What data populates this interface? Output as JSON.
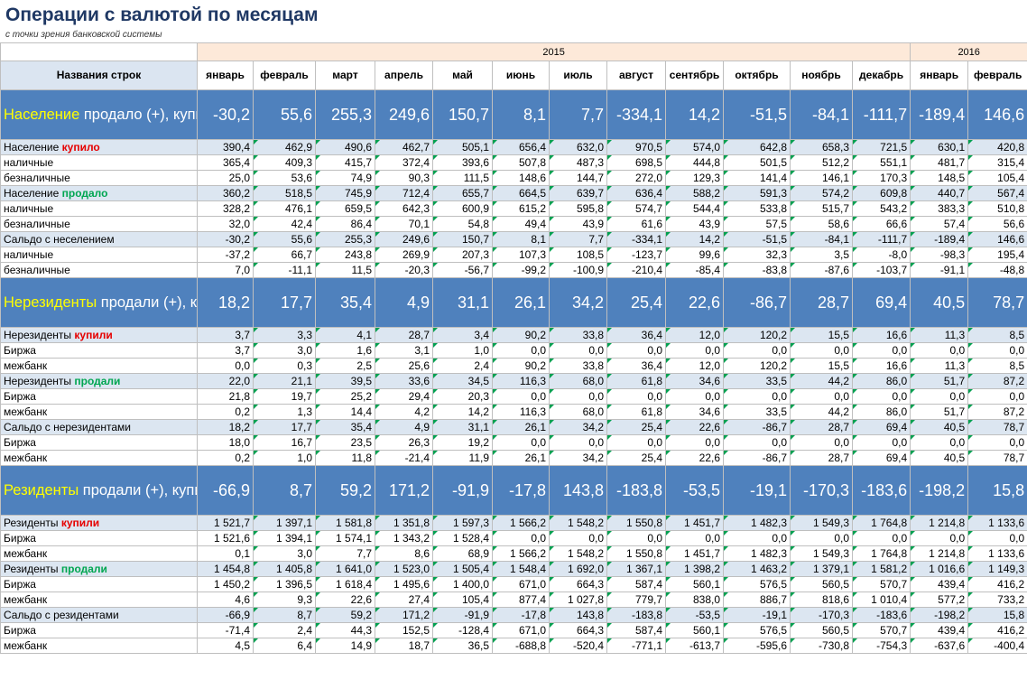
{
  "title": "Операции с валютой по месяцам",
  "subtitle": "с точки зрения банковской системы",
  "header": {
    "row_label": "Названия строк",
    "years": [
      {
        "label": "2015",
        "span": 12
      },
      {
        "label": "2016",
        "span": 2
      }
    ],
    "months": [
      "январь",
      "февраль",
      "март",
      "апрель",
      "май",
      "июнь",
      "июль",
      "август",
      "сентябрь",
      "октябрь",
      "ноябрь",
      "декабрь",
      "январь",
      "февраль"
    ]
  },
  "sections": [
    {
      "label_hl": "Население",
      "label_rest": " продало (+), купило (-)",
      "values": [
        "-30,2",
        "55,6",
        "255,3",
        "249,6",
        "150,7",
        "8,1",
        "7,7",
        "-334,1",
        "14,2",
        "-51,5",
        "-84,1",
        "-111,7",
        "-189,4",
        "146,6"
      ],
      "rows": [
        {
          "type": "sh",
          "label": "Население ",
          "tag": "купило",
          "tag_color": "red",
          "values": [
            "390,4",
            "462,9",
            "490,6",
            "462,7",
            "505,1",
            "656,4",
            "632,0",
            "970,5",
            "574,0",
            "642,8",
            "658,3",
            "721,5",
            "630,1",
            "420,8"
          ]
        },
        {
          "type": "det",
          "label": "наличные",
          "values": [
            "365,4",
            "409,3",
            "415,7",
            "372,4",
            "393,6",
            "507,8",
            "487,3",
            "698,5",
            "444,8",
            "501,5",
            "512,2",
            "551,1",
            "481,7",
            "315,4"
          ]
        },
        {
          "type": "det",
          "label": "безналичные",
          "values": [
            "25,0",
            "53,6",
            "74,9",
            "90,3",
            "111,5",
            "148,6",
            "144,7",
            "272,0",
            "129,3",
            "141,4",
            "146,1",
            "170,3",
            "148,5",
            "105,4"
          ]
        },
        {
          "type": "sh",
          "label": "Население ",
          "tag": "продало",
          "tag_color": "grn",
          "values": [
            "360,2",
            "518,5",
            "745,9",
            "712,4",
            "655,7",
            "664,5",
            "639,7",
            "636,4",
            "588,2",
            "591,3",
            "574,2",
            "609,8",
            "440,7",
            "567,4"
          ]
        },
        {
          "type": "det",
          "label": "наличные",
          "values": [
            "328,2",
            "476,1",
            "659,5",
            "642,3",
            "600,9",
            "615,2",
            "595,8",
            "574,7",
            "544,4",
            "533,8",
            "515,7",
            "543,2",
            "383,3",
            "510,8"
          ]
        },
        {
          "type": "det",
          "label": "безналичные",
          "values": [
            "32,0",
            "42,4",
            "86,4",
            "70,1",
            "54,8",
            "49,4",
            "43,9",
            "61,6",
            "43,9",
            "57,5",
            "58,6",
            "66,6",
            "57,4",
            "56,6"
          ]
        },
        {
          "type": "sh",
          "label": "Сальдо с неселением",
          "tag": "",
          "tag_color": "",
          "values": [
            "-30,2",
            "55,6",
            "255,3",
            "249,6",
            "150,7",
            "8,1",
            "7,7",
            "-334,1",
            "14,2",
            "-51,5",
            "-84,1",
            "-111,7",
            "-189,4",
            "146,6"
          ]
        },
        {
          "type": "det",
          "label": "наличные",
          "values": [
            "-37,2",
            "66,7",
            "243,8",
            "269,9",
            "207,3",
            "107,3",
            "108,5",
            "-123,7",
            "99,6",
            "32,3",
            "3,5",
            "-8,0",
            "-98,3",
            "195,4"
          ]
        },
        {
          "type": "det",
          "label": "безналичные",
          "values": [
            "7,0",
            "-11,1",
            "11,5",
            "-20,3",
            "-56,7",
            "-99,2",
            "-100,9",
            "-210,4",
            "-85,4",
            "-83,8",
            "-87,6",
            "-103,7",
            "-91,1",
            "-48,8"
          ]
        }
      ]
    },
    {
      "label_hl": "Нерезиденты",
      "label_rest": " продали (+), купили (-)",
      "values": [
        "18,2",
        "17,7",
        "35,4",
        "4,9",
        "31,1",
        "26,1",
        "34,2",
        "25,4",
        "22,6",
        "-86,7",
        "28,7",
        "69,4",
        "40,5",
        "78,7"
      ],
      "rows": [
        {
          "type": "sh",
          "label": "Нерезиденты ",
          "tag": "купили",
          "tag_color": "red",
          "values": [
            "3,7",
            "3,3",
            "4,1",
            "28,7",
            "3,4",
            "90,2",
            "33,8",
            "36,4",
            "12,0",
            "120,2",
            "15,5",
            "16,6",
            "11,3",
            "8,5"
          ]
        },
        {
          "type": "det",
          "label": "Биржа",
          "values": [
            "3,7",
            "3,0",
            "1,6",
            "3,1",
            "1,0",
            "0,0",
            "0,0",
            "0,0",
            "0,0",
            "0,0",
            "0,0",
            "0,0",
            "0,0",
            "0,0"
          ]
        },
        {
          "type": "det",
          "label": "межбанк",
          "values": [
            "0,0",
            "0,3",
            "2,5",
            "25,6",
            "2,4",
            "90,2",
            "33,8",
            "36,4",
            "12,0",
            "120,2",
            "15,5",
            "16,6",
            "11,3",
            "8,5"
          ]
        },
        {
          "type": "sh",
          "label": "Нерезиденты ",
          "tag": "продали",
          "tag_color": "grn",
          "values": [
            "22,0",
            "21,1",
            "39,5",
            "33,6",
            "34,5",
            "116,3",
            "68,0",
            "61,8",
            "34,6",
            "33,5",
            "44,2",
            "86,0",
            "51,7",
            "87,2"
          ]
        },
        {
          "type": "det",
          "label": "Биржа",
          "values": [
            "21,8",
            "19,7",
            "25,2",
            "29,4",
            "20,3",
            "0,0",
            "0,0",
            "0,0",
            "0,0",
            "0,0",
            "0,0",
            "0,0",
            "0,0",
            "0,0"
          ]
        },
        {
          "type": "det",
          "label": "межбанк",
          "values": [
            "0,2",
            "1,3",
            "14,4",
            "4,2",
            "14,2",
            "116,3",
            "68,0",
            "61,8",
            "34,6",
            "33,5",
            "44,2",
            "86,0",
            "51,7",
            "87,2"
          ]
        },
        {
          "type": "sh",
          "label": "Сальдо с нерезидентами",
          "tag": "",
          "tag_color": "",
          "values": [
            "18,2",
            "17,7",
            "35,4",
            "4,9",
            "31,1",
            "26,1",
            "34,2",
            "25,4",
            "22,6",
            "-86,7",
            "28,7",
            "69,4",
            "40,5",
            "78,7"
          ]
        },
        {
          "type": "det",
          "label": "Биржа",
          "values": [
            "18,0",
            "16,7",
            "23,5",
            "26,3",
            "19,2",
            "0,0",
            "0,0",
            "0,0",
            "0,0",
            "0,0",
            "0,0",
            "0,0",
            "0,0",
            "0,0"
          ]
        },
        {
          "type": "det",
          "label": "межбанк",
          "values": [
            "0,2",
            "1,0",
            "11,8",
            "-21,4",
            "11,9",
            "26,1",
            "34,2",
            "25,4",
            "22,6",
            "-86,7",
            "28,7",
            "69,4",
            "40,5",
            "78,7"
          ]
        }
      ]
    },
    {
      "label_hl": "Резиденты",
      "label_rest": " продали (+), купили (-)",
      "values": [
        "-66,9",
        "8,7",
        "59,2",
        "171,2",
        "-91,9",
        "-17,8",
        "143,8",
        "-183,8",
        "-53,5",
        "-19,1",
        "-170,3",
        "-183,6",
        "-198,2",
        "15,8"
      ],
      "rows": [
        {
          "type": "sh",
          "label": "Резиденты ",
          "tag": "купили",
          "tag_color": "red",
          "values": [
            "1 521,7",
            "1 397,1",
            "1 581,8",
            "1 351,8",
            "1 597,3",
            "1 566,2",
            "1 548,2",
            "1 550,8",
            "1 451,7",
            "1 482,3",
            "1 549,3",
            "1 764,8",
            "1 214,8",
            "1 133,6"
          ]
        },
        {
          "type": "det",
          "label": "Биржа",
          "values": [
            "1 521,6",
            "1 394,1",
            "1 574,1",
            "1 343,2",
            "1 528,4",
            "0,0",
            "0,0",
            "0,0",
            "0,0",
            "0,0",
            "0,0",
            "0,0",
            "0,0",
            "0,0"
          ]
        },
        {
          "type": "det",
          "label": "межбанк",
          "values": [
            "0,1",
            "3,0",
            "7,7",
            "8,6",
            "68,9",
            "1 566,2",
            "1 548,2",
            "1 550,8",
            "1 451,7",
            "1 482,3",
            "1 549,3",
            "1 764,8",
            "1 214,8",
            "1 133,6"
          ]
        },
        {
          "type": "sh",
          "label": "Резиденты ",
          "tag": "продали",
          "tag_color": "grn",
          "values": [
            "1 454,8",
            "1 405,8",
            "1 641,0",
            "1 523,0",
            "1 505,4",
            "1 548,4",
            "1 692,0",
            "1 367,1",
            "1 398,2",
            "1 463,2",
            "1 379,1",
            "1 581,2",
            "1 016,6",
            "1 149,3"
          ]
        },
        {
          "type": "det",
          "label": "Биржа",
          "values": [
            "1 450,2",
            "1 396,5",
            "1 618,4",
            "1 495,6",
            "1 400,0",
            "671,0",
            "664,3",
            "587,4",
            "560,1",
            "576,5",
            "560,5",
            "570,7",
            "439,4",
            "416,2"
          ]
        },
        {
          "type": "det",
          "label": "межбанк",
          "values": [
            "4,6",
            "9,3",
            "22,6",
            "27,4",
            "105,4",
            "877,4",
            "1 027,8",
            "779,7",
            "838,0",
            "886,7",
            "818,6",
            "1 010,4",
            "577,2",
            "733,2"
          ]
        },
        {
          "type": "sh",
          "label": "Сальдо с резидентами",
          "tag": "",
          "tag_color": "",
          "values": [
            "-66,9",
            "8,7",
            "59,2",
            "171,2",
            "-91,9",
            "-17,8",
            "143,8",
            "-183,8",
            "-53,5",
            "-19,1",
            "-170,3",
            "-183,6",
            "-198,2",
            "15,8"
          ]
        },
        {
          "type": "det",
          "label": "Биржа",
          "values": [
            "-71,4",
            "2,4",
            "44,3",
            "152,5",
            "-128,4",
            "671,0",
            "664,3",
            "587,4",
            "560,1",
            "576,5",
            "560,5",
            "570,7",
            "439,4",
            "416,2"
          ]
        },
        {
          "type": "det",
          "label": "межбанк",
          "values": [
            "4,5",
            "6,4",
            "14,9",
            "18,7",
            "36,5",
            "-688,8",
            "-520,4",
            "-771,1",
            "-613,7",
            "-595,6",
            "-730,8",
            "-754,3",
            "-637,6",
            "-400,4"
          ]
        }
      ]
    }
  ]
}
